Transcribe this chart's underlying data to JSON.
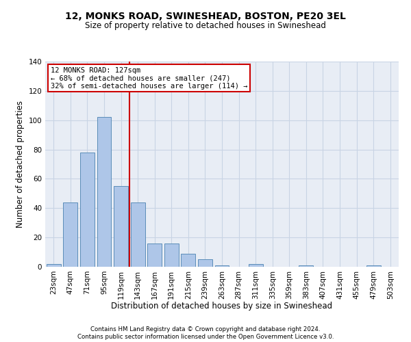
{
  "title1": "12, MONKS ROAD, SWINESHEAD, BOSTON, PE20 3EL",
  "title2": "Size of property relative to detached houses in Swineshead",
  "xlabel": "Distribution of detached houses by size in Swineshead",
  "ylabel": "Number of detached properties",
  "footnote1": "Contains HM Land Registry data © Crown copyright and database right 2024.",
  "footnote2": "Contains public sector information licensed under the Open Government Licence v3.0.",
  "bar_labels": [
    "23sqm",
    "47sqm",
    "71sqm",
    "95sqm",
    "119sqm",
    "143sqm",
    "167sqm",
    "191sqm",
    "215sqm",
    "239sqm",
    "263sqm",
    "287sqm",
    "311sqm",
    "335sqm",
    "359sqm",
    "383sqm",
    "407sqm",
    "431sqm",
    "455sqm",
    "479sqm",
    "503sqm"
  ],
  "bar_values": [
    2,
    44,
    78,
    102,
    55,
    44,
    16,
    16,
    9,
    5,
    1,
    0,
    2,
    0,
    0,
    1,
    0,
    0,
    0,
    1,
    0
  ],
  "bar_color": "#aec6e8",
  "bar_edge_color": "#5b8db8",
  "grid_color": "#c8d4e4",
  "background_color": "#e8edf5",
  "vline_x_index": 4.5,
  "vline_color": "#cc0000",
  "annotation_text": "12 MONKS ROAD: 127sqm\n← 68% of detached houses are smaller (247)\n32% of semi-detached houses are larger (114) →",
  "annotation_box_color": "#ffffff",
  "annotation_box_edge_color": "#cc0000",
  "ylim": [
    0,
    140
  ],
  "yticks": [
    0,
    20,
    40,
    60,
    80,
    100,
    120,
    140
  ]
}
